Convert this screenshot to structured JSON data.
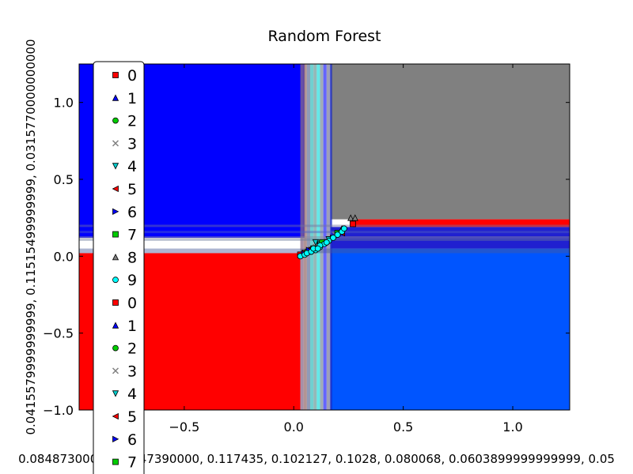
{
  "chart_data": {
    "type": "scatter",
    "title": "Random Forest",
    "xlabel": "0.0848730000, 0.1047390000, 0.117435, 0.102127, 0.1028, 0.080068, 0.0603899999999999, 0.05",
    "ylabel": "0.0415579999999999, 0.11515499999999, 0.0315770000000000",
    "xlim": [
      -0.98,
      1.26
    ],
    "ylim": [
      -1.0,
      1.25
    ],
    "x_ticks": [
      -0.5,
      0.0,
      0.5,
      1.0
    ],
    "x_tick_labels": [
      "−0.5",
      "0.0",
      "0.5",
      "1.0"
    ],
    "y_ticks": [
      -1.0,
      -0.5,
      0.0,
      0.5,
      1.0
    ],
    "y_tick_labels": [
      "−1.0",
      "−0.5",
      "0.0",
      "0.5",
      "1.0"
    ],
    "grid": false,
    "legend_placement": "upper-left",
    "decision_regions": [
      {
        "class": "1",
        "color": "#0000ff",
        "x": [
          -0.98,
          0.05
        ],
        "y": [
          0.12,
          1.25
        ]
      },
      {
        "class": "0",
        "color": "#ff0000",
        "x": [
          -0.98,
          0.03
        ],
        "y": [
          -1.0,
          0.02
        ]
      },
      {
        "class": "3",
        "color": "#808080",
        "x": [
          0.17,
          1.26
        ],
        "y": [
          0.24,
          1.25
        ]
      },
      {
        "class": "0",
        "color": "#ff0000",
        "x": [
          0.27,
          1.26
        ],
        "y": [
          0.19,
          0.24
        ]
      },
      {
        "class": "4",
        "color": "#0055ff",
        "x": [
          0.17,
          1.26
        ],
        "y": [
          -1.0,
          0.05
        ]
      },
      {
        "class": "1",
        "color": "#2020d0",
        "x": [
          0.17,
          1.26
        ],
        "y": [
          0.05,
          0.19
        ]
      }
    ],
    "series": [
      {
        "name": "0",
        "marker": "square",
        "color": "#ff0000",
        "points": [
          [
            0.03,
            0.01
          ],
          [
            0.05,
            0.02
          ],
          [
            0.08,
            0.04
          ],
          [
            0.27,
            0.21
          ]
        ]
      },
      {
        "name": "1",
        "marker": "triangle-up",
        "color": "#0000ff",
        "points": [
          [
            0.04,
            0.02
          ],
          [
            0.07,
            0.03
          ],
          [
            0.11,
            0.06
          ]
        ]
      },
      {
        "name": "2",
        "marker": "circle",
        "color": "#00cc00",
        "points": [
          [
            0.06,
            0.03
          ],
          [
            0.09,
            0.05
          ],
          [
            0.13,
            0.08
          ]
        ]
      },
      {
        "name": "3",
        "marker": "x",
        "color": "#808080",
        "points": [
          [
            0.1,
            0.06
          ],
          [
            0.15,
            0.1
          ],
          [
            0.19,
            0.14
          ]
        ]
      },
      {
        "name": "4",
        "marker": "triangle-down",
        "color": "#00cccc",
        "points": [
          [
            0.1,
            0.09
          ],
          [
            0.12,
            0.08
          ],
          [
            0.16,
            0.11
          ]
        ]
      },
      {
        "name": "5",
        "marker": "triangle-left",
        "color": "#ff0000",
        "points": [
          [
            0.08,
            0.05
          ],
          [
            0.14,
            0.09
          ],
          [
            0.22,
            0.15
          ]
        ]
      },
      {
        "name": "6",
        "marker": "triangle-right",
        "color": "#0000ff",
        "points": [
          [
            0.07,
            0.04
          ],
          [
            0.12,
            0.07
          ],
          [
            0.18,
            0.12
          ]
        ]
      },
      {
        "name": "7",
        "marker": "square",
        "color": "#00cc00",
        "points": [
          [
            0.09,
            0.05
          ],
          [
            0.13,
            0.09
          ],
          [
            0.2,
            0.15
          ]
        ]
      },
      {
        "name": "8",
        "marker": "triangle-up",
        "color": "#808080",
        "points": [
          [
            0.26,
            0.25
          ],
          [
            0.28,
            0.25
          ],
          [
            0.22,
            0.18
          ]
        ]
      },
      {
        "name": "9",
        "marker": "circle",
        "color": "#00ffff",
        "points": [
          [
            0.03,
            0.0
          ],
          [
            0.05,
            0.01
          ],
          [
            0.06,
            0.02
          ],
          [
            0.08,
            0.03
          ],
          [
            0.1,
            0.04
          ],
          [
            0.12,
            0.06
          ],
          [
            0.14,
            0.08
          ],
          [
            0.16,
            0.1
          ],
          [
            0.18,
            0.12
          ],
          [
            0.2,
            0.14
          ],
          [
            0.22,
            0.16
          ],
          [
            0.23,
            0.18
          ],
          [
            0.12,
            0.07
          ],
          [
            0.15,
            0.09
          ],
          [
            0.09,
            0.05
          ],
          [
            0.11,
            0.05
          ]
        ]
      }
    ],
    "legend_entries": [
      {
        "label": "0",
        "marker": "square",
        "color": "#ff0000"
      },
      {
        "label": "1",
        "marker": "triangle-up",
        "color": "#0000ff"
      },
      {
        "label": "2",
        "marker": "circle",
        "color": "#00cc00"
      },
      {
        "label": "3",
        "marker": "x",
        "color": "#808080"
      },
      {
        "label": "4",
        "marker": "triangle-down",
        "color": "#00cccc"
      },
      {
        "label": "5",
        "marker": "triangle-left",
        "color": "#ff0000"
      },
      {
        "label": "6",
        "marker": "triangle-right",
        "color": "#0000ff"
      },
      {
        "label": "7",
        "marker": "square",
        "color": "#00cc00"
      },
      {
        "label": "8",
        "marker": "triangle-up",
        "color": "#808080"
      },
      {
        "label": "9",
        "marker": "circle",
        "color": "#00ffff"
      },
      {
        "label": "0",
        "marker": "square",
        "color": "#ff0000"
      },
      {
        "label": "1",
        "marker": "triangle-up",
        "color": "#0000ff"
      },
      {
        "label": "2",
        "marker": "circle",
        "color": "#00cc00"
      },
      {
        "label": "3",
        "marker": "x",
        "color": "#808080"
      },
      {
        "label": "4",
        "marker": "triangle-down",
        "color": "#00cccc"
      },
      {
        "label": "5",
        "marker": "triangle-left",
        "color": "#ff0000"
      },
      {
        "label": "6",
        "marker": "triangle-right",
        "color": "#0000ff"
      },
      {
        "label": "7",
        "marker": "square",
        "color": "#00cc00"
      }
    ]
  }
}
